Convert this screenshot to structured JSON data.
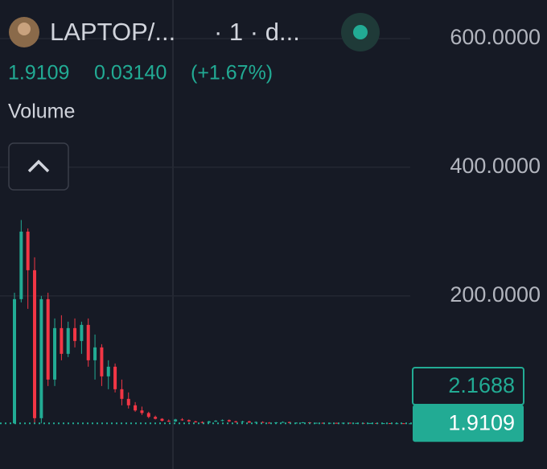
{
  "header": {
    "symbol": "LAPTOP/...",
    "interval": "· 1 · d...",
    "last": "1.9109",
    "change": "0.03140",
    "change_pct": "(+1.67%)",
    "indicator": "Volume"
  },
  "chart_data": {
    "type": "candlestick",
    "up_color": "#22ab94",
    "down_color": "#f23645",
    "open": [
      2,
      195,
      300,
      240,
      10,
      195,
      70,
      150,
      110,
      150,
      130,
      155,
      100,
      120,
      75,
      90,
      55,
      40,
      30,
      22,
      18,
      12,
      9,
      6,
      5,
      8,
      7,
      5,
      4,
      3,
      5,
      6,
      7,
      5,
      4,
      5,
      3,
      4,
      3,
      2.5,
      3.5,
      4,
      2.5,
      3,
      3.5,
      2.2,
      2.8,
      2.1,
      2.7,
      2.3,
      2.9,
      2.2,
      2.5,
      2.1,
      2.4,
      2.05,
      2.2,
      1.95,
      2.1,
      1.88
    ],
    "high": [
      205,
      318,
      305,
      260,
      200,
      205,
      165,
      170,
      160,
      165,
      160,
      165,
      140,
      125,
      100,
      95,
      70,
      50,
      35,
      28,
      20,
      14,
      10,
      8,
      9,
      10,
      8,
      6,
      5,
      6,
      7,
      8,
      8,
      6,
      6,
      6,
      5,
      5,
      4,
      4,
      5,
      4.5,
      3.5,
      4,
      4,
      3,
      3.2,
      2.9,
      3,
      3,
      3.1,
      2.6,
      2.7,
      2.5,
      2.6,
      2.3,
      2.4,
      2.2,
      2.2,
      1.95
    ],
    "low": [
      1,
      190,
      180,
      2,
      2,
      60,
      60,
      100,
      105,
      120,
      110,
      90,
      70,
      60,
      55,
      50,
      30,
      25,
      20,
      15,
      10,
      8,
      5,
      4,
      4,
      6,
      4,
      3,
      2,
      3,
      4,
      5,
      4,
      3,
      3,
      3,
      2,
      3,
      2,
      2,
      3,
      2,
      2,
      2.5,
      2,
      1.8,
      2,
      1.9,
      2.2,
      2,
      2.1,
      1.9,
      2,
      1.9,
      2,
      1.8,
      1.9,
      1.8,
      1.85,
      1.85
    ],
    "close": [
      195,
      300,
      240,
      10,
      195,
      70,
      150,
      110,
      150,
      130,
      155,
      100,
      120,
      75,
      90,
      55,
      40,
      30,
      22,
      18,
      12,
      9,
      6,
      5,
      8,
      7,
      5,
      4,
      3,
      5,
      6,
      7,
      5,
      4,
      5,
      3,
      4,
      3,
      2.5,
      3.5,
      4,
      2.5,
      3,
      3.5,
      2.2,
      2.8,
      2.1,
      2.7,
      2.3,
      2.9,
      2.2,
      2.5,
      2.1,
      2.4,
      2.05,
      2.2,
      1.95,
      2.1,
      1.88,
      1.9109
    ],
    "ylim": [
      -69,
      660
    ],
    "yticks": [
      {
        "value": 200,
        "label": "200.0000"
      },
      {
        "value": 400,
        "label": "400.0000"
      },
      {
        "value": 600,
        "label": "600.0000"
      }
    ],
    "grid": true,
    "last_price": {
      "value": 1.9109,
      "label": "1.9109"
    },
    "prev_price_label": "2.1688"
  }
}
